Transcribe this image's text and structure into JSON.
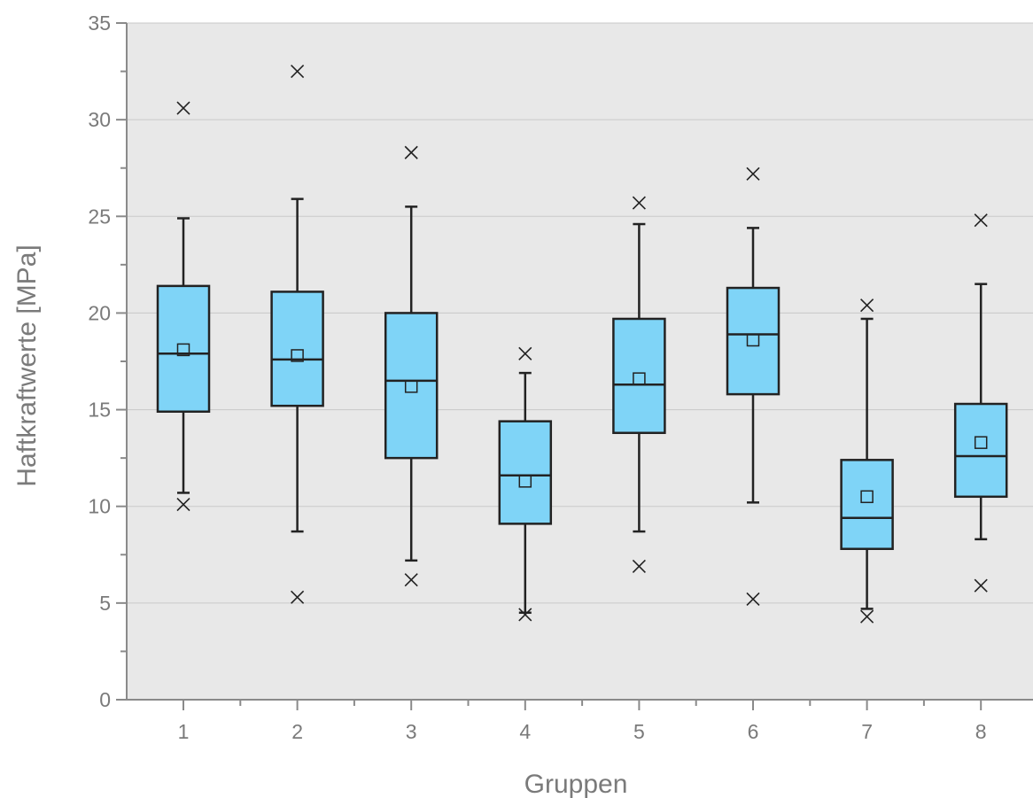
{
  "colors": {
    "plot_background": "#e8e8e8",
    "box_fill": "#7fd4f7",
    "box_stroke": "#222222",
    "gridline": "#c9c9c9",
    "axis": "#8a8a8a",
    "text": "#7a7a7a"
  },
  "chart_data": {
    "type": "box",
    "title": "",
    "xlabel": "Gruppen",
    "ylabel": "Haftkraftwerte [MPa]",
    "ylim": [
      0,
      35
    ],
    "yticks": [
      0,
      5,
      10,
      15,
      20,
      25,
      30,
      35
    ],
    "grid": "horizontal",
    "categories": [
      "1",
      "2",
      "3",
      "4",
      "5",
      "6",
      "7",
      "8"
    ],
    "boxes": [
      {
        "group": "1",
        "whisker_low": 10.7,
        "q1": 14.9,
        "median": 17.9,
        "mean": 18.1,
        "q3": 21.4,
        "whisker_high": 24.9,
        "min": 10.1,
        "max": 30.6
      },
      {
        "group": "2",
        "whisker_low": 8.7,
        "q1": 15.2,
        "median": 17.6,
        "mean": 17.8,
        "q3": 21.1,
        "whisker_high": 25.9,
        "min": 5.3,
        "max": 32.5
      },
      {
        "group": "3",
        "whisker_low": 7.2,
        "q1": 12.5,
        "median": 16.5,
        "mean": 16.2,
        "q3": 20.0,
        "whisker_high": 25.5,
        "min": 6.2,
        "max": 28.3
      },
      {
        "group": "4",
        "whisker_low": 4.5,
        "q1": 9.1,
        "median": 11.6,
        "mean": 11.3,
        "q3": 14.4,
        "whisker_high": 16.9,
        "min": 4.4,
        "max": 17.9
      },
      {
        "group": "5",
        "whisker_low": 8.7,
        "q1": 13.8,
        "median": 16.3,
        "mean": 16.6,
        "q3": 19.7,
        "whisker_high": 24.6,
        "min": 6.9,
        "max": 25.7
      },
      {
        "group": "6",
        "whisker_low": 10.2,
        "q1": 15.8,
        "median": 18.9,
        "mean": 18.6,
        "q3": 21.3,
        "whisker_high": 24.4,
        "min": 5.2,
        "max": 27.2
      },
      {
        "group": "7",
        "whisker_low": 4.7,
        "q1": 7.8,
        "median": 9.4,
        "mean": 10.5,
        "q3": 12.4,
        "whisker_high": 19.7,
        "min": 4.3,
        "max": 20.4
      },
      {
        "group": "8",
        "whisker_low": 8.3,
        "q1": 10.5,
        "median": 12.6,
        "mean": 13.3,
        "q3": 15.3,
        "whisker_high": 21.5,
        "min": 5.9,
        "max": 24.8
      }
    ]
  }
}
